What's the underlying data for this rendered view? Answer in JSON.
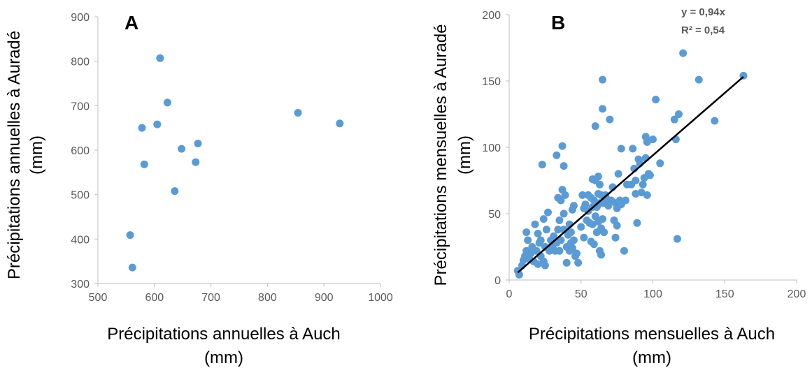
{
  "colors": {
    "point": "#5b9bd5",
    "axis": "#bfbfbf",
    "trend": "#000000",
    "tick_text": "#595959"
  },
  "chart_data": [
    {
      "type": "scatter",
      "panel_label": "A",
      "xlabel_line1": "Précipitations annuelles à Auch",
      "xlabel_line2": "(mm)",
      "ylabel_line1": "Précipitations annuelles à Auradé",
      "ylabel_line2": "(mm)",
      "xlim": [
        500,
        1000
      ],
      "ylim": [
        300,
        900
      ],
      "xticks": [
        500,
        600,
        700,
        800,
        900,
        1000
      ],
      "yticks": [
        300,
        400,
        500,
        600,
        700,
        800,
        900
      ],
      "grid": false,
      "points": [
        {
          "x": 557,
          "y": 409
        },
        {
          "x": 561,
          "y": 336
        },
        {
          "x": 578,
          "y": 650
        },
        {
          "x": 582,
          "y": 568
        },
        {
          "x": 605,
          "y": 658
        },
        {
          "x": 610,
          "y": 807
        },
        {
          "x": 623,
          "y": 707
        },
        {
          "x": 636,
          "y": 508
        },
        {
          "x": 648,
          "y": 603
        },
        {
          "x": 673,
          "y": 573
        },
        {
          "x": 677,
          "y": 615
        },
        {
          "x": 854,
          "y": 684
        },
        {
          "x": 928,
          "y": 660
        }
      ]
    },
    {
      "type": "scatter",
      "panel_label": "B",
      "xlabel_line1": "Précipitations mensuelles à Auch",
      "xlabel_line2": "(mm)",
      "ylabel_line1": "Précipitations mensuelles à Auradé",
      "ylabel_line2": "(mm)",
      "xlim": [
        0,
        200
      ],
      "ylim": [
        0,
        200
      ],
      "xticks": [
        0,
        50,
        100,
        150,
        200
      ],
      "yticks": [
        0,
        50,
        100,
        150,
        200
      ],
      "grid": false,
      "trendline": {
        "slope": 0.94,
        "intercept": 0,
        "x_range": [
          6,
          163
        ]
      },
      "equation": "y = 0,94x",
      "r2": "R² = 0,54",
      "points": [
        {
          "x": 6,
          "y": 7
        },
        {
          "x": 7,
          "y": 4
        },
        {
          "x": 9,
          "y": 11
        },
        {
          "x": 10,
          "y": 15
        },
        {
          "x": 11,
          "y": 18
        },
        {
          "x": 12,
          "y": 22
        },
        {
          "x": 12,
          "y": 36
        },
        {
          "x": 13,
          "y": 30
        },
        {
          "x": 14,
          "y": 16
        },
        {
          "x": 15,
          "y": 20
        },
        {
          "x": 16,
          "y": 25
        },
        {
          "x": 17,
          "y": 14
        },
        {
          "x": 18,
          "y": 42
        },
        {
          "x": 19,
          "y": 22
        },
        {
          "x": 20,
          "y": 12
        },
        {
          "x": 20,
          "y": 35
        },
        {
          "x": 21,
          "y": 28
        },
        {
          "x": 22,
          "y": 18
        },
        {
          "x": 22,
          "y": 30
        },
        {
          "x": 23,
          "y": 87
        },
        {
          "x": 24,
          "y": 14
        },
        {
          "x": 24,
          "y": 46
        },
        {
          "x": 25,
          "y": 11
        },
        {
          "x": 25,
          "y": 25
        },
        {
          "x": 26,
          "y": 38
        },
        {
          "x": 27,
          "y": 51
        },
        {
          "x": 28,
          "y": 22
        },
        {
          "x": 29,
          "y": 30
        },
        {
          "x": 30,
          "y": 26
        },
        {
          "x": 31,
          "y": 33
        },
        {
          "x": 32,
          "y": 22
        },
        {
          "x": 33,
          "y": 94
        },
        {
          "x": 33,
          "y": 28
        },
        {
          "x": 34,
          "y": 38
        },
        {
          "x": 34,
          "y": 62
        },
        {
          "x": 35,
          "y": 45
        },
        {
          "x": 35,
          "y": 22
        },
        {
          "x": 36,
          "y": 60
        },
        {
          "x": 36,
          "y": 30
        },
        {
          "x": 37,
          "y": 68
        },
        {
          "x": 37,
          "y": 101
        },
        {
          "x": 38,
          "y": 86
        },
        {
          "x": 38,
          "y": 50
        },
        {
          "x": 38,
          "y": 38
        },
        {
          "x": 39,
          "y": 64
        },
        {
          "x": 40,
          "y": 13
        },
        {
          "x": 40,
          "y": 25
        },
        {
          "x": 41,
          "y": 34
        },
        {
          "x": 42,
          "y": 22
        },
        {
          "x": 42,
          "y": 42
        },
        {
          "x": 43,
          "y": 28
        },
        {
          "x": 43,
          "y": 36
        },
        {
          "x": 44,
          "y": 24
        },
        {
          "x": 44,
          "y": 53
        },
        {
          "x": 45,
          "y": 30
        },
        {
          "x": 45,
          "y": 56
        },
        {
          "x": 46,
          "y": 18
        },
        {
          "x": 47,
          "y": 20
        },
        {
          "x": 48,
          "y": 13
        },
        {
          "x": 50,
          "y": 40
        },
        {
          "x": 51,
          "y": 64
        },
        {
          "x": 52,
          "y": 54
        },
        {
          "x": 52,
          "y": 32
        },
        {
          "x": 53,
          "y": 57
        },
        {
          "x": 54,
          "y": 45
        },
        {
          "x": 55,
          "y": 64
        },
        {
          "x": 55,
          "y": 52
        },
        {
          "x": 56,
          "y": 43
        },
        {
          "x": 57,
          "y": 29
        },
        {
          "x": 57,
          "y": 62
        },
        {
          "x": 58,
          "y": 76
        },
        {
          "x": 58,
          "y": 55
        },
        {
          "x": 58,
          "y": 42
        },
        {
          "x": 59,
          "y": 27
        },
        {
          "x": 59,
          "y": 60
        },
        {
          "x": 60,
          "y": 75
        },
        {
          "x": 60,
          "y": 48
        },
        {
          "x": 60,
          "y": 116
        },
        {
          "x": 61,
          "y": 36
        },
        {
          "x": 61,
          "y": 55
        },
        {
          "x": 62,
          "y": 78
        },
        {
          "x": 62,
          "y": 65
        },
        {
          "x": 62,
          "y": 44
        },
        {
          "x": 63,
          "y": 22
        },
        {
          "x": 63,
          "y": 72
        },
        {
          "x": 63,
          "y": 58
        },
        {
          "x": 64,
          "y": 19
        },
        {
          "x": 64,
          "y": 39
        },
        {
          "x": 64,
          "y": 64
        },
        {
          "x": 65,
          "y": 129
        },
        {
          "x": 65,
          "y": 151
        },
        {
          "x": 65,
          "y": 46
        },
        {
          "x": 66,
          "y": 58
        },
        {
          "x": 66,
          "y": 36
        },
        {
          "x": 67,
          "y": 64
        },
        {
          "x": 68,
          "y": 61
        },
        {
          "x": 69,
          "y": 56
        },
        {
          "x": 70,
          "y": 121
        },
        {
          "x": 71,
          "y": 60
        },
        {
          "x": 72,
          "y": 70
        },
        {
          "x": 73,
          "y": 45
        },
        {
          "x": 74,
          "y": 32
        },
        {
          "x": 74,
          "y": 58
        },
        {
          "x": 75,
          "y": 54
        },
        {
          "x": 75,
          "y": 41
        },
        {
          "x": 76,
          "y": 80
        },
        {
          "x": 77,
          "y": 60
        },
        {
          "x": 78,
          "y": 99
        },
        {
          "x": 78,
          "y": 57
        },
        {
          "x": 80,
          "y": 22
        },
        {
          "x": 81,
          "y": 60
        },
        {
          "x": 82,
          "y": 72
        },
        {
          "x": 85,
          "y": 72
        },
        {
          "x": 86,
          "y": 99
        },
        {
          "x": 87,
          "y": 84
        },
        {
          "x": 88,
          "y": 65
        },
        {
          "x": 88,
          "y": 75
        },
        {
          "x": 89,
          "y": 43
        },
        {
          "x": 90,
          "y": 91
        },
        {
          "x": 91,
          "y": 88
        },
        {
          "x": 92,
          "y": 66
        },
        {
          "x": 93,
          "y": 72
        },
        {
          "x": 94,
          "y": 77
        },
        {
          "x": 95,
          "y": 92
        },
        {
          "x": 95,
          "y": 108
        },
        {
          "x": 96,
          "y": 64
        },
        {
          "x": 96,
          "y": 104
        },
        {
          "x": 97,
          "y": 80
        },
        {
          "x": 98,
          "y": 79
        },
        {
          "x": 100,
          "y": 106
        },
        {
          "x": 102,
          "y": 136
        },
        {
          "x": 105,
          "y": 88
        },
        {
          "x": 115,
          "y": 121
        },
        {
          "x": 116,
          "y": 106
        },
        {
          "x": 117,
          "y": 31
        },
        {
          "x": 118,
          "y": 125
        },
        {
          "x": 121,
          "y": 171
        },
        {
          "x": 132,
          "y": 151
        },
        {
          "x": 143,
          "y": 120
        },
        {
          "x": 163,
          "y": 154
        }
      ]
    }
  ]
}
